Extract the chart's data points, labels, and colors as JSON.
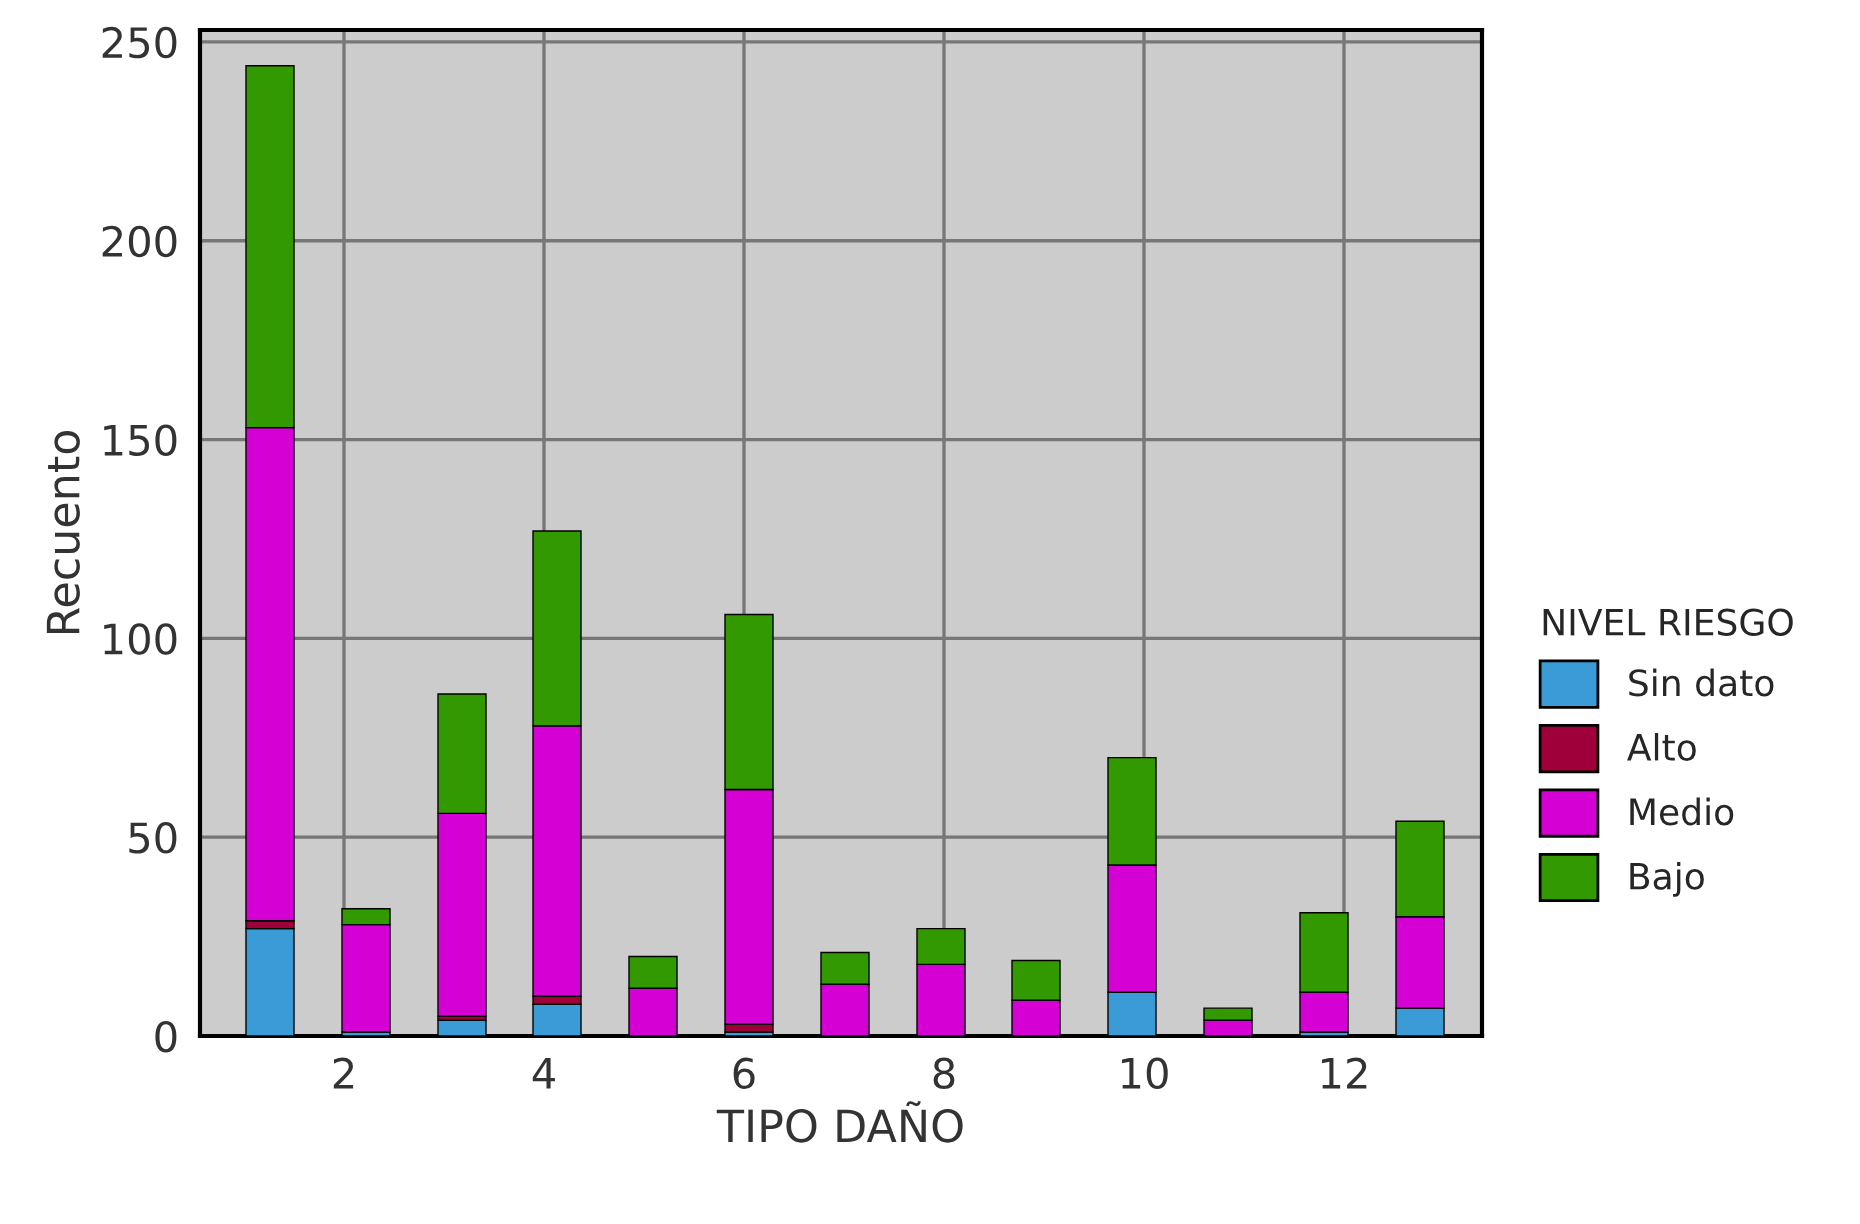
{
  "chart_data": {
    "type": "bar",
    "stacked": true,
    "xlabel": "TIPO DAÑO",
    "ylabel": "Recuento",
    "legend_title": "NIVEL RIESGO",
    "x": [
      1.26,
      2.22,
      3.18,
      4.13,
      5.09,
      6.05,
      7.01,
      7.97,
      8.92,
      9.88,
      10.84,
      11.8,
      12.76
    ],
    "series": [
      {
        "name": "Sin dato",
        "color": "#3a9bd6",
        "values": [
          27,
          1,
          4,
          8,
          null,
          1,
          null,
          null,
          null,
          11,
          null,
          1,
          7
        ]
      },
      {
        "name": "Alto",
        "color": "#a0003a",
        "values": [
          2,
          null,
          1,
          2,
          null,
          2,
          null,
          null,
          null,
          null,
          null,
          null,
          null
        ]
      },
      {
        "name": "Medio",
        "color": "#d400d4",
        "values": [
          124,
          27,
          51,
          68,
          12,
          59,
          13,
          18,
          9,
          32,
          4,
          10,
          23
        ]
      },
      {
        "name": "Bajo",
        "color": "#339900",
        "values": [
          91,
          4,
          30,
          49,
          8,
          44,
          8,
          9,
          10,
          27,
          3,
          20,
          24
        ]
      }
    ],
    "xlim": [
      0.56,
      13.38
    ],
    "xticks": [
      2,
      4,
      6,
      8,
      10,
      12
    ],
    "ylim": [
      0,
      253
    ],
    "yticks": [
      0,
      50,
      100,
      150,
      200,
      250
    ],
    "grid": true,
    "legend": "right"
  }
}
